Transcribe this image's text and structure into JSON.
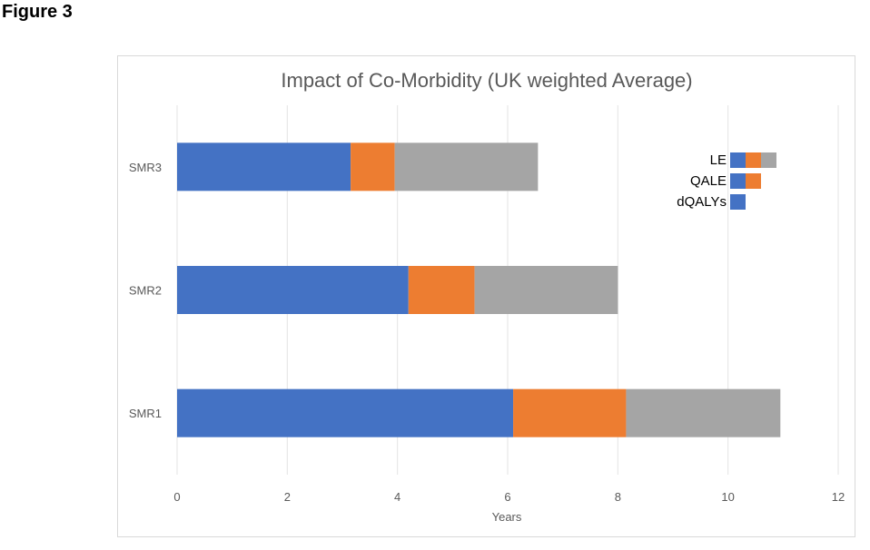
{
  "figure_label": "Figure 3",
  "chart_data": {
    "type": "bar",
    "orientation": "horizontal",
    "stacked": true,
    "title": "Impact of Co-Morbidity (UK weighted Average)",
    "xlabel": "Years",
    "ylabel": "",
    "xlim": [
      0,
      12
    ],
    "xticks": [
      0,
      2,
      4,
      6,
      8,
      10,
      12
    ],
    "grid": true,
    "legend_position": "top-right",
    "categories": [
      "SMR3",
      "SMR2",
      "SMR1"
    ],
    "series": [
      {
        "color": "#4472c4",
        "values": [
          3.15,
          4.2,
          6.1
        ]
      },
      {
        "color": "#ed7d31",
        "values": [
          0.8,
          1.2,
          2.05
        ]
      },
      {
        "color": "#a5a5a5",
        "values": [
          2.6,
          2.6,
          2.8
        ]
      }
    ],
    "legend": [
      {
        "label": "LE",
        "swatches": [
          "#4472c4",
          "#ed7d31",
          "#a5a5a5"
        ]
      },
      {
        "label": "QALE",
        "swatches": [
          "#4472c4",
          "#ed7d31"
        ]
      },
      {
        "label": "dQALYs",
        "swatches": [
          "#4472c4"
        ]
      }
    ]
  }
}
